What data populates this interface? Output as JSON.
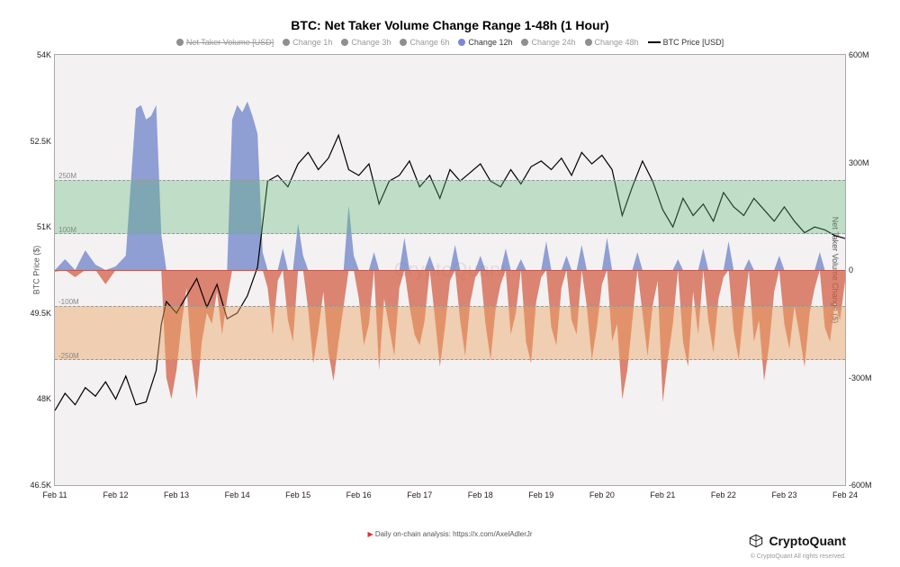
{
  "title": "BTC: Net Taker Volume Change Range 1-48h (1 Hour)",
  "legend": {
    "items": [
      {
        "label": "Net Taker Volume [USD]",
        "color": "#8f8f8f",
        "strike": true,
        "active": false
      },
      {
        "label": "Change 1h",
        "color": "#8f8f8f",
        "strike": false,
        "active": false
      },
      {
        "label": "Change 3h",
        "color": "#8f8f8f",
        "strike": false,
        "active": false
      },
      {
        "label": "Change 6h",
        "color": "#8f8f8f",
        "strike": false,
        "active": false
      },
      {
        "label": "Change 12h",
        "color": "#7d87d8",
        "strike": false,
        "active": true
      },
      {
        "label": "Change 24h",
        "color": "#8f8f8f",
        "strike": false,
        "active": false
      },
      {
        "label": "Change 48h",
        "color": "#8f8f8f",
        "strike": false,
        "active": false
      }
    ],
    "line_item": {
      "label": "BTC Price [USD]",
      "color": "#000000"
    }
  },
  "left_axis": {
    "label": "BTC Price ($)",
    "min": 46500,
    "max": 54000,
    "ticks": [
      {
        "v": 46500,
        "label": "46.5K"
      },
      {
        "v": 48000,
        "label": "48K"
      },
      {
        "v": 49500,
        "label": "49.5K"
      },
      {
        "v": 51000,
        "label": "51K"
      },
      {
        "v": 52500,
        "label": "52.5K"
      },
      {
        "v": 54000,
        "label": "54K"
      }
    ]
  },
  "right_axis": {
    "label": "Net Taker Volume Change ($)",
    "min": -600000000,
    "max": 600000000,
    "ticks": [
      {
        "v": -600000000,
        "label": "-600M"
      },
      {
        "v": -300000000,
        "label": "-300M"
      },
      {
        "v": 0,
        "label": "0"
      },
      {
        "v": 300000000,
        "label": "300M"
      },
      {
        "v": 600000000,
        "label": "600M"
      }
    ],
    "bands": [
      {
        "from": 100000000,
        "to": 250000000,
        "color": "rgba(94,184,120,0.35)",
        "label_top": "250M",
        "label_bottom": "100M"
      },
      {
        "from": -250000000,
        "to": -100000000,
        "color": "rgba(236,164,98,0.45)",
        "label_top": "-100M",
        "label_bottom": "-250M"
      }
    ]
  },
  "x_axis": {
    "min": 0,
    "max": 312,
    "ticks": [
      {
        "v": 0,
        "label": "Feb 11"
      },
      {
        "v": 24,
        "label": "Feb 12"
      },
      {
        "v": 48,
        "label": "Feb 13"
      },
      {
        "v": 72,
        "label": "Feb 14"
      },
      {
        "v": 96,
        "label": "Feb 15"
      },
      {
        "v": 120,
        "label": "Feb 16"
      },
      {
        "v": 144,
        "label": "Feb 17"
      },
      {
        "v": 168,
        "label": "Feb 18"
      },
      {
        "v": 192,
        "label": "Feb 19"
      },
      {
        "v": 216,
        "label": "Feb 20"
      },
      {
        "v": 240,
        "label": "Feb 21"
      },
      {
        "v": 264,
        "label": "Feb 22"
      },
      {
        "v": 288,
        "label": "Feb 23"
      },
      {
        "v": 312,
        "label": "Feb 24"
      }
    ]
  },
  "price_series": {
    "color": "#000000",
    "width": 1.2,
    "points": [
      [
        0,
        47800
      ],
      [
        4,
        48100
      ],
      [
        8,
        47900
      ],
      [
        12,
        48200
      ],
      [
        16,
        48050
      ],
      [
        20,
        48300
      ],
      [
        24,
        48000
      ],
      [
        28,
        48400
      ],
      [
        32,
        47900
      ],
      [
        36,
        47950
      ],
      [
        40,
        48500
      ],
      [
        42,
        49300
      ],
      [
        44,
        49700
      ],
      [
        48,
        49500
      ],
      [
        52,
        49800
      ],
      [
        56,
        50100
      ],
      [
        60,
        49600
      ],
      [
        64,
        50000
      ],
      [
        68,
        49400
      ],
      [
        72,
        49500
      ],
      [
        76,
        49800
      ],
      [
        80,
        50300
      ],
      [
        84,
        51800
      ],
      [
        88,
        51900
      ],
      [
        92,
        51700
      ],
      [
        96,
        52100
      ],
      [
        100,
        52300
      ],
      [
        104,
        52000
      ],
      [
        108,
        52200
      ],
      [
        112,
        52600
      ],
      [
        116,
        52000
      ],
      [
        120,
        51900
      ],
      [
        124,
        52100
      ],
      [
        128,
        51400
      ],
      [
        132,
        51800
      ],
      [
        136,
        51900
      ],
      [
        140,
        52150
      ],
      [
        144,
        51700
      ],
      [
        148,
        51900
      ],
      [
        152,
        51500
      ],
      [
        156,
        52000
      ],
      [
        160,
        51800
      ],
      [
        164,
        51950
      ],
      [
        168,
        52100
      ],
      [
        172,
        51800
      ],
      [
        176,
        51700
      ],
      [
        180,
        52000
      ],
      [
        184,
        51750
      ],
      [
        188,
        52050
      ],
      [
        192,
        52150
      ],
      [
        196,
        52000
      ],
      [
        200,
        52200
      ],
      [
        204,
        51900
      ],
      [
        208,
        52300
      ],
      [
        212,
        52100
      ],
      [
        216,
        52250
      ],
      [
        220,
        52000
      ],
      [
        224,
        51200
      ],
      [
        228,
        51700
      ],
      [
        232,
        52150
      ],
      [
        236,
        51800
      ],
      [
        240,
        51300
      ],
      [
        244,
        51000
      ],
      [
        248,
        51500
      ],
      [
        252,
        51200
      ],
      [
        256,
        51400
      ],
      [
        260,
        51100
      ],
      [
        264,
        51600
      ],
      [
        268,
        51350
      ],
      [
        272,
        51200
      ],
      [
        276,
        51500
      ],
      [
        280,
        51300
      ],
      [
        284,
        51100
      ],
      [
        288,
        51350
      ],
      [
        292,
        51100
      ],
      [
        296,
        50900
      ],
      [
        300,
        51000
      ],
      [
        304,
        50950
      ],
      [
        308,
        50850
      ],
      [
        312,
        50800
      ]
    ]
  },
  "volume_series": {
    "pos_color": "rgba(110,130,200,0.75)",
    "neg_color": "rgba(210,95,70,0.75)",
    "points": [
      [
        0,
        -5
      ],
      [
        4,
        30
      ],
      [
        8,
        -20
      ],
      [
        12,
        55
      ],
      [
        16,
        15
      ],
      [
        20,
        -40
      ],
      [
        24,
        10
      ],
      [
        28,
        40
      ],
      [
        32,
        450
      ],
      [
        34,
        460
      ],
      [
        36,
        420
      ],
      [
        38,
        430
      ],
      [
        40,
        460
      ],
      [
        42,
        100
      ],
      [
        44,
        -300
      ],
      [
        46,
        -360
      ],
      [
        48,
        -280
      ],
      [
        50,
        -150
      ],
      [
        52,
        -50
      ],
      [
        54,
        -250
      ],
      [
        56,
        -360
      ],
      [
        58,
        -200
      ],
      [
        60,
        -120
      ],
      [
        62,
        -150
      ],
      [
        64,
        -60
      ],
      [
        66,
        -180
      ],
      [
        68,
        -80
      ],
      [
        70,
        420
      ],
      [
        72,
        460
      ],
      [
        74,
        440
      ],
      [
        76,
        470
      ],
      [
        78,
        430
      ],
      [
        80,
        380
      ],
      [
        82,
        50
      ],
      [
        84,
        -50
      ],
      [
        86,
        -180
      ],
      [
        88,
        -30
      ],
      [
        90,
        60
      ],
      [
        92,
        -140
      ],
      [
        94,
        -200
      ],
      [
        96,
        130
      ],
      [
        98,
        40
      ],
      [
        100,
        -110
      ],
      [
        102,
        -260
      ],
      [
        104,
        -170
      ],
      [
        106,
        -60
      ],
      [
        108,
        -230
      ],
      [
        110,
        -310
      ],
      [
        112,
        -200
      ],
      [
        114,
        -100
      ],
      [
        116,
        180
      ],
      [
        118,
        40
      ],
      [
        120,
        -80
      ],
      [
        122,
        -210
      ],
      [
        124,
        -150
      ],
      [
        126,
        50
      ],
      [
        128,
        -280
      ],
      [
        130,
        -80
      ],
      [
        132,
        -160
      ],
      [
        134,
        -240
      ],
      [
        136,
        -50
      ],
      [
        138,
        90
      ],
      [
        140,
        -100
      ],
      [
        142,
        -180
      ],
      [
        144,
        -210
      ],
      [
        146,
        -140
      ],
      [
        148,
        40
      ],
      [
        150,
        -130
      ],
      [
        152,
        -270
      ],
      [
        154,
        -160
      ],
      [
        156,
        -30
      ],
      [
        158,
        70
      ],
      [
        160,
        -140
      ],
      [
        162,
        -240
      ],
      [
        164,
        -90
      ],
      [
        166,
        -20
      ],
      [
        168,
        40
      ],
      [
        170,
        -150
      ],
      [
        172,
        -250
      ],
      [
        174,
        -110
      ],
      [
        176,
        -40
      ],
      [
        178,
        60
      ],
      [
        180,
        -180
      ],
      [
        182,
        -120
      ],
      [
        184,
        30
      ],
      [
        186,
        -200
      ],
      [
        188,
        -260
      ],
      [
        190,
        -90
      ],
      [
        192,
        -20
      ],
      [
        194,
        80
      ],
      [
        196,
        -160
      ],
      [
        198,
        -210
      ],
      [
        200,
        -50
      ],
      [
        202,
        40
      ],
      [
        204,
        -140
      ],
      [
        206,
        -180
      ],
      [
        208,
        70
      ],
      [
        210,
        -100
      ],
      [
        212,
        -250
      ],
      [
        214,
        -160
      ],
      [
        216,
        -40
      ],
      [
        218,
        90
      ],
      [
        220,
        -200
      ],
      [
        222,
        -150
      ],
      [
        224,
        -360
      ],
      [
        226,
        -280
      ],
      [
        228,
        -140
      ],
      [
        230,
        50
      ],
      [
        232,
        -120
      ],
      [
        234,
        -240
      ],
      [
        236,
        -100
      ],
      [
        238,
        -30
      ],
      [
        240,
        -370
      ],
      [
        242,
        -250
      ],
      [
        244,
        -150
      ],
      [
        246,
        30
      ],
      [
        248,
        -200
      ],
      [
        250,
        -270
      ],
      [
        252,
        -60
      ],
      [
        254,
        -180
      ],
      [
        256,
        60
      ],
      [
        258,
        -140
      ],
      [
        260,
        -230
      ],
      [
        262,
        -80
      ],
      [
        264,
        -20
      ],
      [
        266,
        80
      ],
      [
        268,
        -170
      ],
      [
        270,
        -250
      ],
      [
        272,
        -110
      ],
      [
        274,
        30
      ],
      [
        276,
        -200
      ],
      [
        278,
        -140
      ],
      [
        280,
        -310
      ],
      [
        282,
        -210
      ],
      [
        284,
        -60
      ],
      [
        286,
        40
      ],
      [
        288,
        -150
      ],
      [
        290,
        -220
      ],
      [
        292,
        -100
      ],
      [
        294,
        -180
      ],
      [
        296,
        -270
      ],
      [
        298,
        -120
      ],
      [
        300,
        -50
      ],
      [
        302,
        50
      ],
      [
        304,
        -160
      ],
      [
        306,
        -200
      ],
      [
        308,
        -90
      ],
      [
        310,
        -140
      ],
      [
        312,
        -30
      ]
    ]
  },
  "watermark": "CryptoQuant",
  "source_note": "Daily on-chain analysis: https://x.com/AxelAdlerJr",
  "brand": "CryptoQuant",
  "brand_copy": "© CryptoQuant All rights reserved.",
  "colors": {
    "plot_bg": "#f3f1f2",
    "grid": "#c9c9c9",
    "band_green": "rgba(94,184,120,0.35)",
    "band_orange": "rgba(236,164,98,0.45)"
  }
}
